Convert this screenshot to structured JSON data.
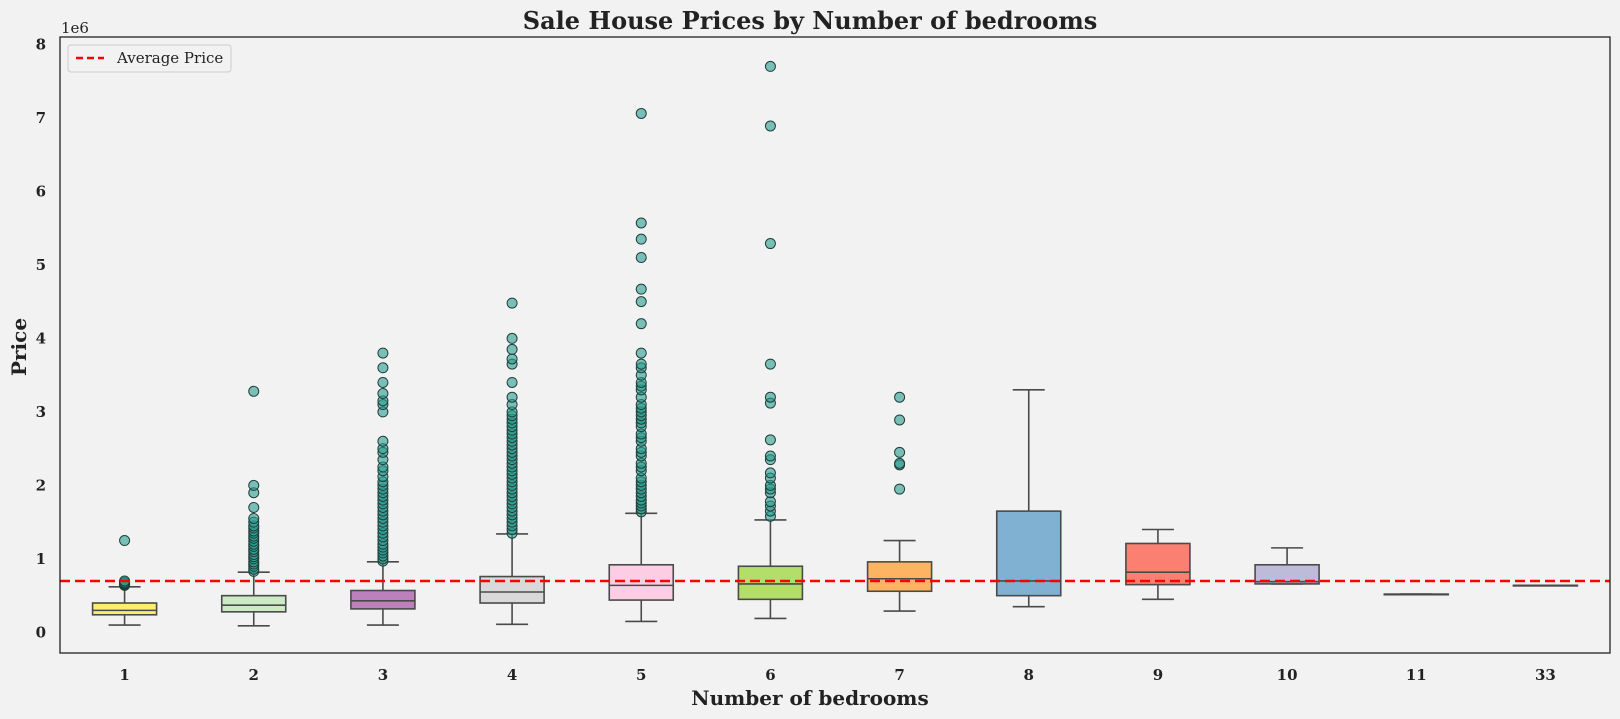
{
  "chart_data": {
    "type": "box",
    "title": "Sale House Prices by Number of bedrooms",
    "xlabel": "Number of bedrooms",
    "ylabel": "Price",
    "y_offset_label": "1e6",
    "y_ticks": [
      0,
      1,
      2,
      3,
      4,
      5,
      6,
      7,
      8
    ],
    "ylim": [
      -0.28,
      8.1
    ],
    "grid": false,
    "legend": {
      "position": "top-left",
      "entries": [
        "Average Price"
      ]
    },
    "average_price": 0.7,
    "average_color": "#ff0000",
    "outlier_color": "#2a9d8f",
    "categories": [
      "1",
      "2",
      "3",
      "4",
      "5",
      "6",
      "7",
      "8",
      "9",
      "10",
      "11",
      "33"
    ],
    "boxes": [
      {
        "category": "1",
        "whisker_low": 0.1,
        "q1": 0.24,
        "median": 0.3,
        "q3": 0.4,
        "whisker_high": 0.62,
        "color": "#ffed6f",
        "outliers": [
          0.64,
          0.65,
          0.66,
          0.67,
          0.68,
          0.7,
          1.25
        ]
      },
      {
        "category": "2",
        "whisker_low": 0.09,
        "q1": 0.28,
        "median": 0.37,
        "q3": 0.5,
        "whisker_high": 0.82,
        "color": "#ccebc5",
        "outliers": [
          0.83,
          0.86,
          0.9,
          0.93,
          0.96,
          1.0,
          1.03,
          1.06,
          1.1,
          1.13,
          1.17,
          1.2,
          1.24,
          1.28,
          1.31,
          1.35,
          1.38,
          1.42,
          1.45,
          1.5,
          1.55,
          1.7,
          1.9,
          2.0,
          3.28
        ]
      },
      {
        "category": "3",
        "whisker_low": 0.1,
        "q1": 0.32,
        "median": 0.43,
        "q3": 0.57,
        "whisker_high": 0.96,
        "color": "#bc80bd",
        "outliers": [
          0.97,
          1.0,
          1.04,
          1.08,
          1.12,
          1.16,
          1.2,
          1.25,
          1.3,
          1.35,
          1.4,
          1.45,
          1.5,
          1.55,
          1.6,
          1.65,
          1.7,
          1.75,
          1.8,
          1.85,
          1.9,
          1.95,
          2.0,
          2.05,
          2.12,
          2.2,
          2.25,
          2.35,
          2.45,
          2.5,
          2.6,
          3.0,
          3.1,
          3.15,
          3.25,
          3.4,
          3.6,
          3.8
        ]
      },
      {
        "category": "4",
        "whisker_low": 0.11,
        "q1": 0.4,
        "median": 0.55,
        "q3": 0.76,
        "whisker_high": 1.34,
        "color": "#d9d9d9",
        "outliers": [
          1.35,
          1.4,
          1.45,
          1.5,
          1.55,
          1.6,
          1.65,
          1.7,
          1.75,
          1.8,
          1.85,
          1.9,
          1.95,
          2.0,
          2.05,
          2.1,
          2.15,
          2.2,
          2.25,
          2.3,
          2.35,
          2.4,
          2.45,
          2.5,
          2.55,
          2.6,
          2.65,
          2.7,
          2.75,
          2.8,
          2.85,
          2.9,
          2.95,
          3.0,
          3.1,
          3.2,
          3.4,
          3.65,
          3.72,
          3.85,
          4.0,
          4.48
        ]
      },
      {
        "category": "5",
        "whisker_low": 0.15,
        "q1": 0.44,
        "median": 0.64,
        "q3": 0.92,
        "whisker_high": 1.62,
        "color": "#fccde5",
        "outliers": [
          1.64,
          1.68,
          1.72,
          1.76,
          1.8,
          1.85,
          1.9,
          1.95,
          2.0,
          2.05,
          2.1,
          2.2,
          2.25,
          2.3,
          2.4,
          2.45,
          2.5,
          2.6,
          2.65,
          2.7,
          2.8,
          2.85,
          2.9,
          2.95,
          3.0,
          3.05,
          3.1,
          3.2,
          3.3,
          3.35,
          3.4,
          3.5,
          3.6,
          3.65,
          3.8,
          4.2,
          4.5,
          4.67,
          5.1,
          5.35,
          5.57,
          7.06
        ]
      },
      {
        "category": "6",
        "whisker_low": 0.19,
        "q1": 0.45,
        "median": 0.66,
        "q3": 0.9,
        "whisker_high": 1.53,
        "color": "#b3de69",
        "outliers": [
          1.58,
          1.65,
          1.72,
          1.78,
          1.9,
          1.95,
          2.0,
          2.1,
          2.17,
          2.35,
          2.4,
          2.62,
          3.12,
          3.2,
          3.65,
          5.29,
          6.89,
          7.7
        ]
      },
      {
        "category": "7",
        "whisker_low": 0.29,
        "q1": 0.56,
        "median": 0.73,
        "q3": 0.96,
        "whisker_high": 1.25,
        "color": "#fdb462",
        "outliers": [
          1.95,
          2.28,
          2.3,
          2.45,
          2.89,
          3.2
        ]
      },
      {
        "category": "8",
        "whisker_low": 0.35,
        "q1": 0.5,
        "median": 0.7,
        "q3": 1.65,
        "whisker_high": 3.3,
        "color": "#80b1d3",
        "outliers": []
      },
      {
        "category": "9",
        "whisker_low": 0.45,
        "q1": 0.65,
        "median": 0.82,
        "q3": 1.21,
        "whisker_high": 1.4,
        "color": "#fb8072",
        "outliers": []
      },
      {
        "category": "10",
        "whisker_low": 0.66,
        "q1": 0.66,
        "median": 0.69,
        "q3": 0.92,
        "whisker_high": 1.15,
        "color": "#bebada",
        "outliers": []
      },
      {
        "category": "11",
        "whisker_low": 0.52,
        "q1": 0.52,
        "median": 0.52,
        "q3": 0.52,
        "whisker_high": 0.52,
        "color": "#8dd3c7",
        "outliers": []
      },
      {
        "category": "33",
        "whisker_low": 0.64,
        "q1": 0.64,
        "median": 0.64,
        "q3": 0.64,
        "whisker_high": 0.64,
        "color": "#ffffb3",
        "outliers": []
      }
    ]
  }
}
